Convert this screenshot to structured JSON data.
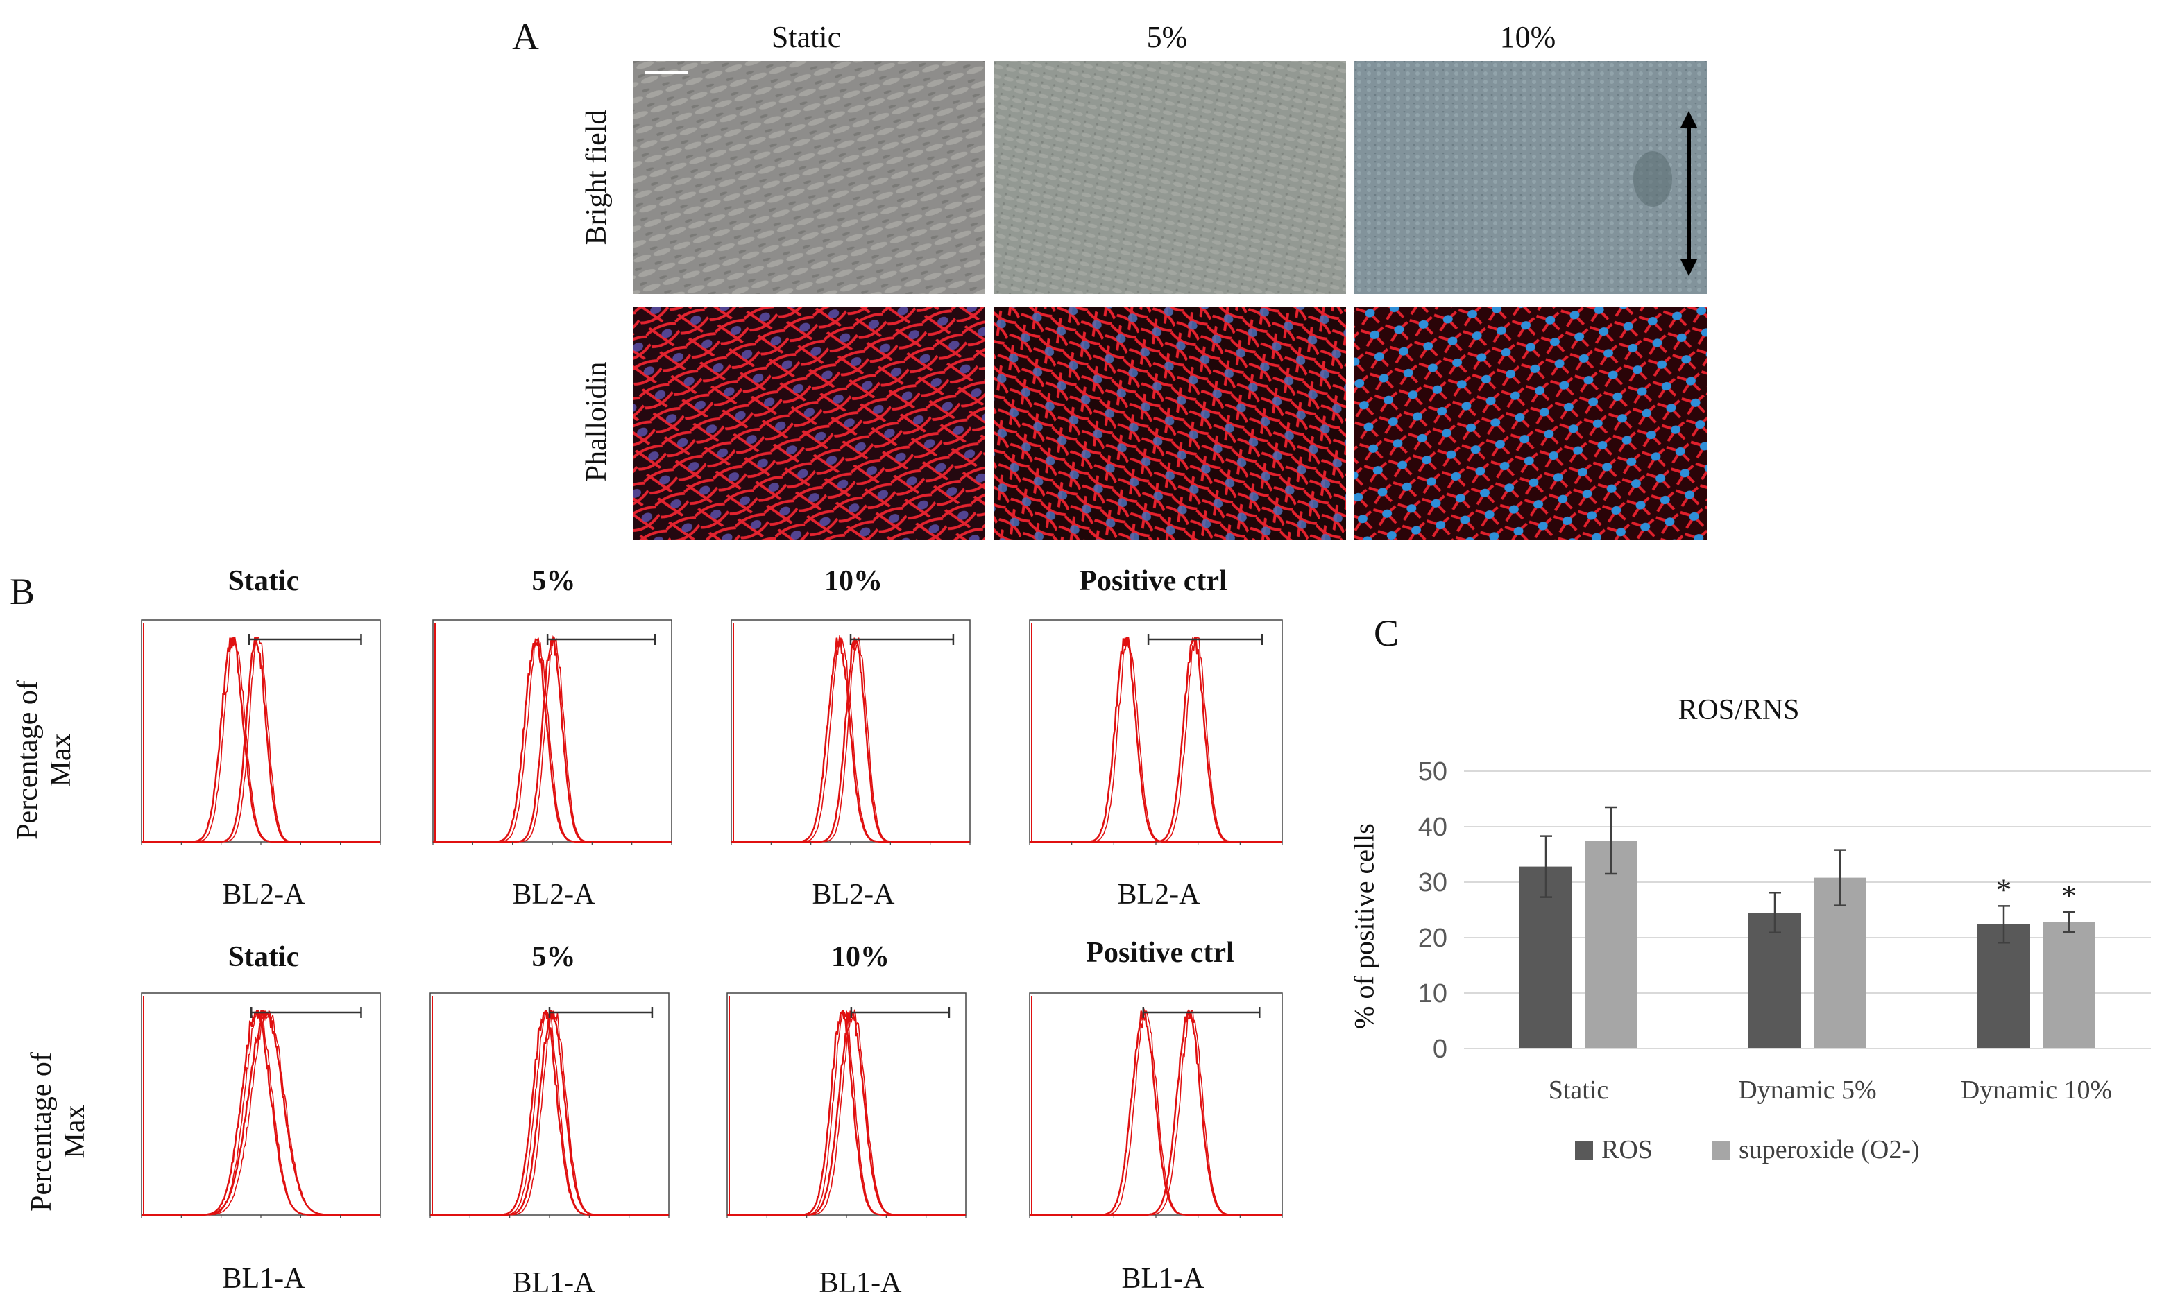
{
  "panel_a": {
    "letter": "A",
    "columns": [
      "Static",
      "5%",
      "10%"
    ],
    "rows": [
      "Bright field",
      "Phalloidin"
    ]
  },
  "panel_b": {
    "letter": "B",
    "columns": [
      "Static",
      "5%",
      "10%",
      "Positive ctrl"
    ],
    "ylabel_line1": "Percentage of",
    "ylabel_line2": "Max",
    "rows": [
      {
        "xlabel": "BL2-A"
      },
      {
        "xlabel": "BL1-A"
      }
    ]
  },
  "chart_data": {
    "type": "bar",
    "letter": "C",
    "title": "ROS/RNS",
    "ylabel": "% of positive cells",
    "xlabel": "",
    "categories": [
      "Static",
      "Dynamic 5%",
      "Dynamic 10%"
    ],
    "series": [
      {
        "name": "ROS",
        "values": [
          32.8,
          24.5,
          22.4
        ],
        "errors": [
          5.5,
          3.6,
          3.3
        ],
        "significant": [
          false,
          false,
          true
        ],
        "color": "#595959"
      },
      {
        "name": "superoxide (O2-)",
        "values": [
          37.5,
          30.8,
          22.8
        ],
        "errors": [
          6.0,
          5.0,
          1.8
        ],
        "significant": [
          false,
          false,
          true
        ],
        "color": "#a6a6a6"
      }
    ],
    "ylim": [
      0,
      50
    ],
    "yticks": [
      0,
      10,
      20,
      30,
      40,
      50
    ],
    "grid": true,
    "legend": "bottom",
    "sig_marker": "*"
  }
}
